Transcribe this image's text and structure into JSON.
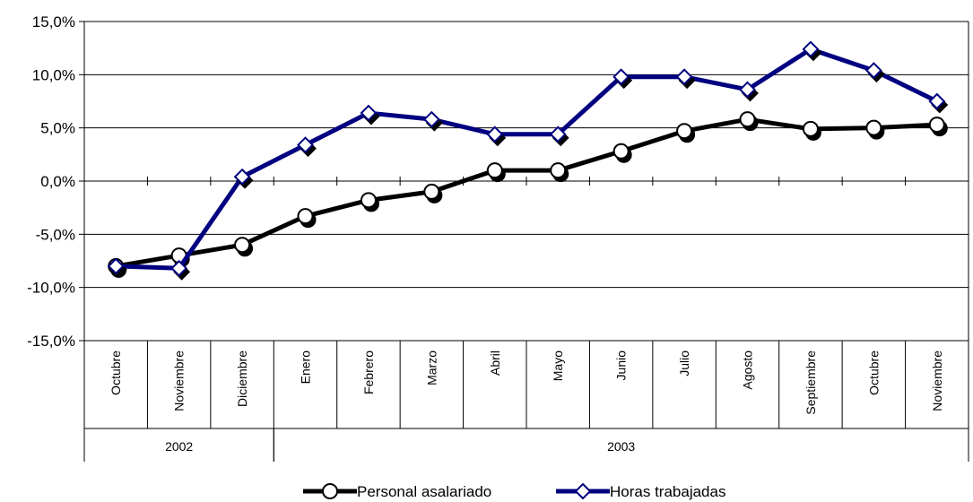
{
  "chart_data": {
    "type": "line",
    "categories": [
      "Octubre",
      "Noviembre",
      "Diciembre",
      "Enero",
      "Febrero",
      "Marzo",
      "Abril",
      "Mayo",
      "Junio",
      "Julio",
      "Agosto",
      "Septiembre",
      "Octubre",
      "Noviembre"
    ],
    "year_groups": [
      {
        "label": "2002",
        "span": 3
      },
      {
        "label": "2003",
        "span": 11
      }
    ],
    "series": [
      {
        "name": "Personal asalariado",
        "color": "#000000",
        "marker": "circle",
        "values": [
          -8.0,
          -7.0,
          -6.0,
          -3.3,
          -1.8,
          -1.0,
          1.0,
          1.0,
          2.8,
          4.7,
          5.8,
          4.9,
          5.0,
          5.3
        ]
      },
      {
        "name": "Horas trabajadas",
        "color": "#000080",
        "marker": "diamond",
        "values": [
          -8.0,
          -8.2,
          0.4,
          3.4,
          6.4,
          5.8,
          4.4,
          4.4,
          9.8,
          9.8,
          8.6,
          12.4,
          10.4,
          7.5
        ]
      }
    ],
    "ylim": [
      -15,
      15
    ],
    "yticks": [
      15,
      10,
      5,
      0,
      -5,
      -10,
      -15
    ],
    "ytick_labels": [
      "15,0%",
      "10,0%",
      "5,0%",
      "0,0%",
      "-5,0%",
      "-10,0%",
      "-15,0%"
    ],
    "grid": true,
    "legend_position": "bottom",
    "title": "",
    "xlabel": "",
    "ylabel": ""
  }
}
